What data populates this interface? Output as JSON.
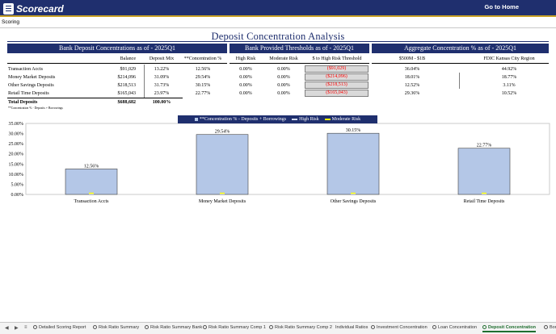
{
  "app": {
    "logo_text": "Scorecard",
    "goto_home": "Go to Home"
  },
  "breadcrumb": {
    "label": "Scoring"
  },
  "page_title": "Deposit Concentration Analysis",
  "sections": {
    "deposits": "Bank Deposit Concentrations as of - 2025Q1",
    "thresholds": "Bank Provided Thresholds as of - 2025Q1",
    "aggregate": "Aggregate Concentration % as of - 2025Q1"
  },
  "columns": {
    "balance": "Balance",
    "deposit_mix": "Deposit Mix",
    "concentration": "**Concentration %",
    "high_risk": "High Risk",
    "moderate_risk": "Moderate Risk",
    "to_high_risk": "$ to High Risk Threshold",
    "peer_size": "$500M - $1B",
    "peer_region": "FDIC Kansas City Region"
  },
  "rows": [
    {
      "name": "Transaction Accts",
      "balance": "$91,029",
      "mix": "13.22%",
      "conc": "12.56%",
      "high": "0.00%",
      "moderate": "0.00%",
      "to_high": "($91,029)",
      "peer_size": "36.04%",
      "peer_region": "44.92%"
    },
    {
      "name": "Money Market Deposits",
      "balance": "$214,096",
      "mix": "31.09%",
      "conc": "29.54%",
      "high": "0.00%",
      "moderate": "0.00%",
      "to_high": "($214,096)",
      "peer_size": "18.01%",
      "peer_region": "18.77%"
    },
    {
      "name": "Other Savings Deposits",
      "balance": "$218,513",
      "mix": "31.73%",
      "conc": "30.15%",
      "high": "0.00%",
      "moderate": "0.00%",
      "to_high": "($218,513)",
      "peer_size": "12.52%",
      "peer_region": "3.11%"
    },
    {
      "name": "Retail Time Deposits",
      "balance": "$165,043",
      "mix": "23.97%",
      "conc": "22.77%",
      "high": "0.00%",
      "moderate": "0.00%",
      "to_high": "($165,043)",
      "peer_size": "29.36%",
      "peer_region": "10.52%"
    }
  ],
  "total": {
    "label": "Total Deposits",
    "balance": "$688,682",
    "mix": "100.00%"
  },
  "footnote": "**Concentration % - Deposits + Borrowings",
  "colors": {
    "navy": "#1f2f6e",
    "bar": "#b4c7e7",
    "moderate": "#ffff00",
    "red": "#ff0000"
  },
  "chart_data": {
    "type": "bar",
    "categories": [
      "Transaction Accts",
      "Money Market Deposits",
      "Other Savings Deposits",
      "Retail Time Deposits"
    ],
    "series": [
      {
        "name": "**Concentration % - Deposits + Borrowings",
        "type": "bar",
        "values": [
          12.56,
          29.54,
          30.15,
          22.77
        ],
        "labels": [
          "12.56%",
          "29.54%",
          "30.15%",
          "22.77%"
        ]
      },
      {
        "name": "High Risk",
        "type": "marker",
        "values": [
          0,
          0,
          0,
          0
        ]
      },
      {
        "name": "Moderate Risk",
        "type": "marker",
        "values": [
          0,
          0,
          0,
          0
        ]
      }
    ],
    "y_ticks": [
      "0.00%",
      "5.00%",
      "10.00%",
      "15.00%",
      "20.00%",
      "25.00%",
      "30.00%",
      "35.00%"
    ],
    "ylim": [
      0,
      35
    ],
    "legend": "top-center",
    "grid": false
  },
  "tabs": [
    {
      "label": "Detailed Scoring Report",
      "active": false
    },
    {
      "label": "Risk Ratio Summary",
      "active": false
    },
    {
      "label": "Risk Ratio Summary Bank",
      "active": false
    },
    {
      "label": "Risk Ratio Summary Comp 1",
      "active": false
    },
    {
      "label": "Risk Ratio Summary Comp 2",
      "active": false
    },
    {
      "label": "Individual Ratios",
      "active": false
    },
    {
      "label": "Investment Concentration",
      "active": false
    },
    {
      "label": "Loan Concentration",
      "active": false
    },
    {
      "label": "Deposit Concentration",
      "active": true
    },
    {
      "label": "Borro",
      "active": false
    }
  ]
}
